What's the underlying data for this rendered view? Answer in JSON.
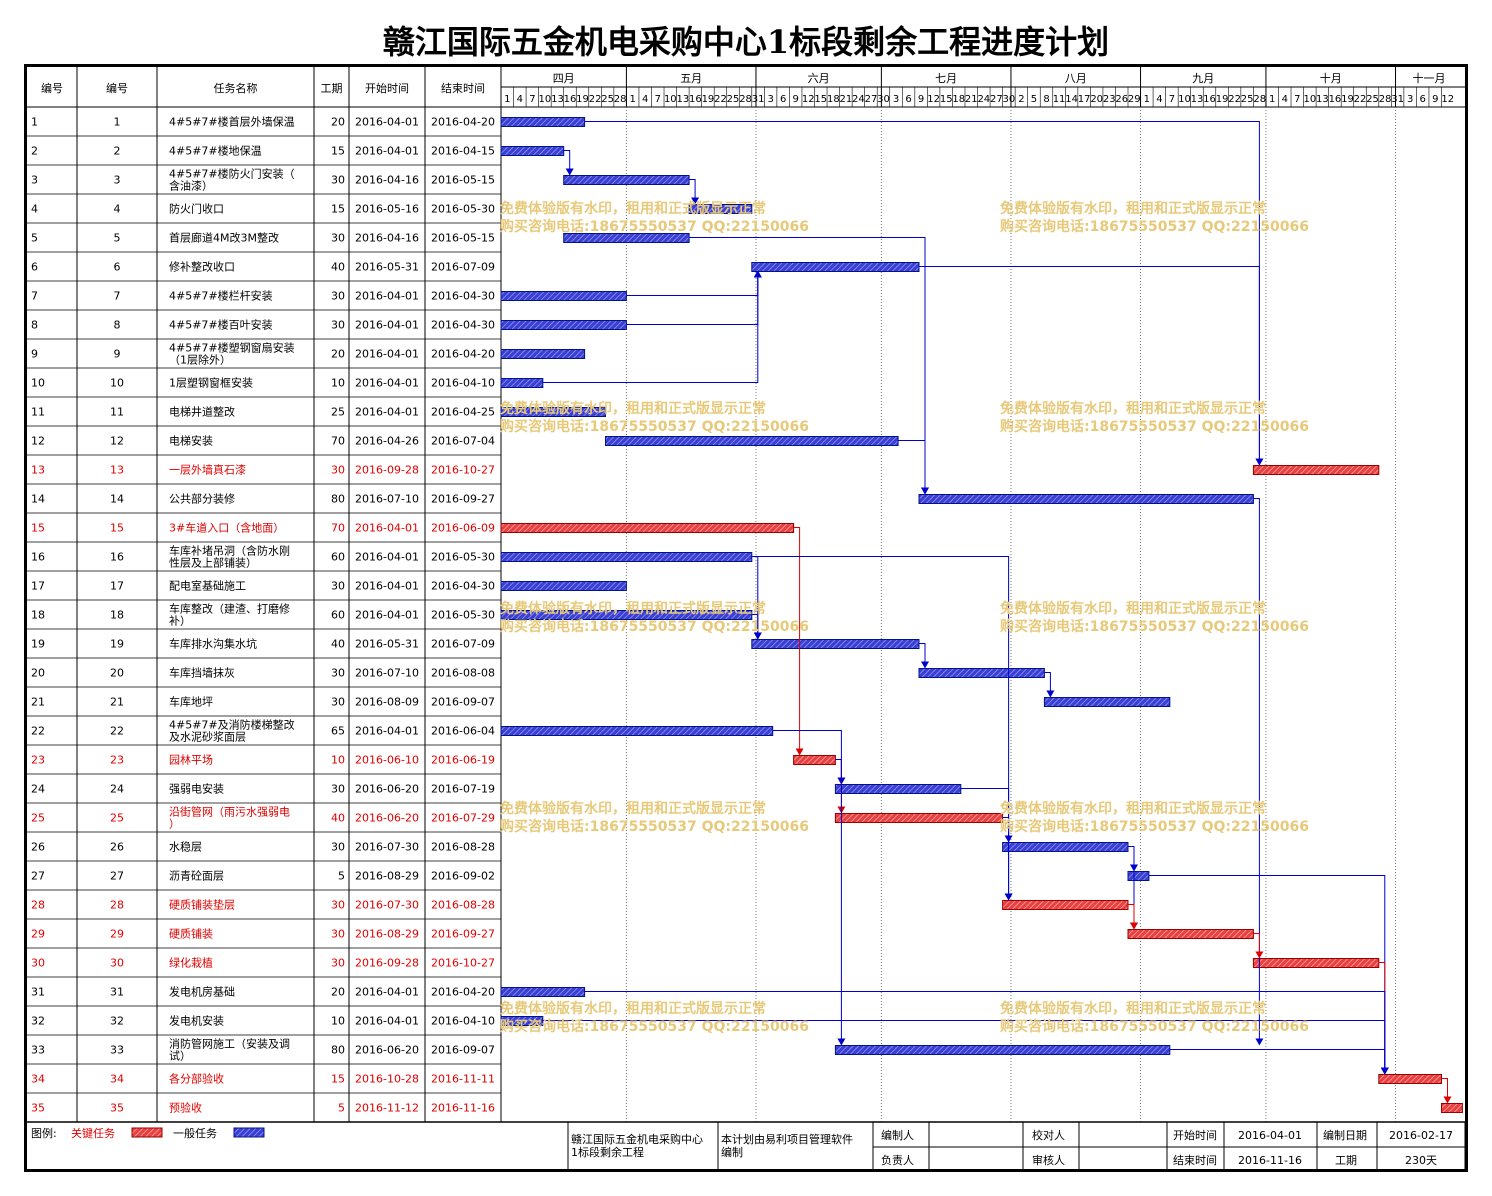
{
  "title": "赣江国际五金机电采购中心1标段剩余工程进度计划",
  "header": {
    "col_id": "编号",
    "col_no": "编号",
    "col_name": "任务名称",
    "col_dur": "工期",
    "col_start": "开始时间",
    "col_end": "结束时间"
  },
  "months": [
    "四月",
    "五月",
    "六月",
    "七月",
    "八月",
    "九月",
    "十月",
    "十一月"
  ],
  "day_ticks": [
    [
      "1",
      "4",
      "7",
      "10",
      "13",
      "16",
      "19",
      "22",
      "25",
      "28"
    ],
    [
      "1",
      "4",
      "7",
      "10",
      "13",
      "16",
      "19",
      "22",
      "25",
      "28",
      "31"
    ],
    [
      "3",
      "6",
      "9",
      "12",
      "15",
      "18",
      "21",
      "24",
      "27",
      "30"
    ],
    [
      "3",
      "6",
      "9",
      "12",
      "15",
      "18",
      "21",
      "24",
      "27",
      "30"
    ],
    [
      "2",
      "5",
      "8",
      "11",
      "14",
      "17",
      "20",
      "23",
      "26",
      "29"
    ],
    [
      "1",
      "4",
      "7",
      "10",
      "13",
      "16",
      "19",
      "22",
      "25",
      "28"
    ],
    [
      "1",
      "4",
      "7",
      "10",
      "13",
      "16",
      "19",
      "22",
      "25",
      "28",
      "31"
    ],
    [
      "3",
      "6",
      "9",
      "12"
    ]
  ],
  "tasks": [
    {
      "id": "1",
      "name": "4#5#7#楼首层外墙保温",
      "dur": "20",
      "start": "2016-04-01",
      "end": "2016-04-20",
      "critical": false
    },
    {
      "id": "2",
      "name": "4#5#7#楼地保温",
      "dur": "15",
      "start": "2016-04-01",
      "end": "2016-04-15",
      "critical": false
    },
    {
      "id": "3",
      "name": "4#5#7#楼防火门安装（含油漆）",
      "dur": "30",
      "start": "2016-04-16",
      "end": "2016-05-15",
      "critical": false
    },
    {
      "id": "4",
      "name": "防火门收口",
      "dur": "15",
      "start": "2016-05-16",
      "end": "2016-05-30",
      "critical": false
    },
    {
      "id": "5",
      "name": "首层廊道4M改3M整改",
      "dur": "30",
      "start": "2016-04-16",
      "end": "2016-05-15",
      "critical": false
    },
    {
      "id": "6",
      "name": "修补整改收口",
      "dur": "40",
      "start": "2016-05-31",
      "end": "2016-07-09",
      "critical": false
    },
    {
      "id": "7",
      "name": "4#5#7#楼栏杆安装",
      "dur": "30",
      "start": "2016-04-01",
      "end": "2016-04-30",
      "critical": false
    },
    {
      "id": "8",
      "name": "4#5#7#楼百叶安装",
      "dur": "30",
      "start": "2016-04-01",
      "end": "2016-04-30",
      "critical": false
    },
    {
      "id": "9",
      "name": "4#5#7#楼塑钢窗扇安装（1层除外）",
      "dur": "20",
      "start": "2016-04-01",
      "end": "2016-04-20",
      "critical": false
    },
    {
      "id": "10",
      "name": "1层塑钢窗框安装",
      "dur": "10",
      "start": "2016-04-01",
      "end": "2016-04-10",
      "critical": false
    },
    {
      "id": "11",
      "name": "电梯井道整改",
      "dur": "25",
      "start": "2016-04-01",
      "end": "2016-04-25",
      "critical": false
    },
    {
      "id": "12",
      "name": "电梯安装",
      "dur": "70",
      "start": "2016-04-26",
      "end": "2016-07-04",
      "critical": false
    },
    {
      "id": "13",
      "name": "一层外墙真石漆",
      "dur": "30",
      "start": "2016-09-28",
      "end": "2016-10-27",
      "critical": true
    },
    {
      "id": "14",
      "name": "公共部分装修",
      "dur": "80",
      "start": "2016-07-10",
      "end": "2016-09-27",
      "critical": false
    },
    {
      "id": "15",
      "name": "3#车道入口（含地面）",
      "dur": "70",
      "start": "2016-04-01",
      "end": "2016-06-09",
      "critical": true
    },
    {
      "id": "16",
      "name": "车库补堵吊洞（含防水刚性层及上部铺装）",
      "dur": "60",
      "start": "2016-04-01",
      "end": "2016-05-30",
      "critical": false
    },
    {
      "id": "17",
      "name": "配电室基础施工",
      "dur": "30",
      "start": "2016-04-01",
      "end": "2016-04-30",
      "critical": false
    },
    {
      "id": "18",
      "name": "车库整改（建渣、打磨修补）",
      "dur": "60",
      "start": "2016-04-01",
      "end": "2016-05-30",
      "critical": false
    },
    {
      "id": "19",
      "name": "车库排水沟集水坑",
      "dur": "40",
      "start": "2016-05-31",
      "end": "2016-07-09",
      "critical": false
    },
    {
      "id": "20",
      "name": "车库挡墙抹灰",
      "dur": "30",
      "start": "2016-07-10",
      "end": "2016-08-08",
      "critical": false
    },
    {
      "id": "21",
      "name": "车库地坪",
      "dur": "30",
      "start": "2016-08-09",
      "end": "2016-09-07",
      "critical": false
    },
    {
      "id": "22",
      "name": "4#5#7#及消防楼梯整改及水泥砂浆面层",
      "dur": "65",
      "start": "2016-04-01",
      "end": "2016-06-04",
      "critical": false
    },
    {
      "id": "23",
      "name": "园林平场",
      "dur": "10",
      "start": "2016-06-10",
      "end": "2016-06-19",
      "critical": true
    },
    {
      "id": "24",
      "name": "强弱电安装",
      "dur": "30",
      "start": "2016-06-20",
      "end": "2016-07-19",
      "critical": false
    },
    {
      "id": "25",
      "name": "沿街管网（雨污水强弱电）",
      "dur": "40",
      "start": "2016-06-20",
      "end": "2016-07-29",
      "critical": true
    },
    {
      "id": "26",
      "name": "水稳层",
      "dur": "30",
      "start": "2016-07-30",
      "end": "2016-08-28",
      "critical": false
    },
    {
      "id": "27",
      "name": "沥青砼面层",
      "dur": "5",
      "start": "2016-08-29",
      "end": "2016-09-02",
      "critical": false
    },
    {
      "id": "28",
      "name": "硬质铺装垫层",
      "dur": "30",
      "start": "2016-07-30",
      "end": "2016-08-28",
      "critical": true
    },
    {
      "id": "29",
      "name": "硬质铺装",
      "dur": "30",
      "start": "2016-08-29",
      "end": "2016-09-27",
      "critical": true
    },
    {
      "id": "30",
      "name": "绿化栽植",
      "dur": "30",
      "start": "2016-09-28",
      "end": "2016-10-27",
      "critical": true
    },
    {
      "id": "31",
      "name": "发电机房基础",
      "dur": "20",
      "start": "2016-04-01",
      "end": "2016-04-20",
      "critical": false
    },
    {
      "id": "32",
      "name": "发电机安装",
      "dur": "10",
      "start": "2016-04-01",
      "end": "2016-04-10",
      "critical": false
    },
    {
      "id": "33",
      "name": "消防管网施工（安装及调试）",
      "dur": "80",
      "start": "2016-06-20",
      "end": "2016-09-07",
      "critical": false
    },
    {
      "id": "34",
      "name": "各分部验收",
      "dur": "15",
      "start": "2016-10-28",
      "end": "2016-11-11",
      "critical": true
    },
    {
      "id": "35",
      "name": "预验收",
      "dur": "5",
      "start": "2016-11-12",
      "end": "2016-11-16",
      "critical": true
    }
  ],
  "links": [
    [
      1,
      13
    ],
    [
      2,
      3
    ],
    [
      3,
      4
    ],
    [
      5,
      14
    ],
    [
      6,
      13
    ],
    [
      7,
      6
    ],
    [
      8,
      6
    ],
    [
      10,
      6
    ],
    [
      12,
      14
    ],
    [
      14,
      33
    ],
    [
      15,
      23
    ],
    [
      16,
      19
    ],
    [
      16,
      28
    ],
    [
      18,
      19
    ],
    [
      19,
      20
    ],
    [
      20,
      21
    ],
    [
      22,
      24
    ],
    [
      23,
      24
    ],
    [
      23,
      25
    ],
    [
      23,
      33
    ],
    [
      24,
      28
    ],
    [
      25,
      26
    ],
    [
      26,
      27
    ],
    [
      26,
      29
    ],
    [
      27,
      34
    ],
    [
      28,
      29
    ],
    [
      29,
      30
    ],
    [
      30,
      34
    ],
    [
      31,
      34
    ],
    [
      32,
      34
    ],
    [
      33,
      34
    ],
    [
      34,
      35
    ]
  ],
  "watermark": {
    "line1": "免费体验版有水印，租用和正式版显示正常",
    "line2": "购买咨询电话:18675550537 QQ:22150066"
  },
  "legend": {
    "label": "图例:",
    "critical": "关键任务",
    "normal": "一般任务"
  },
  "footer": {
    "project_name": "赣江国际五金机电采购中心1标段剩余工程",
    "software": "本计划由易利项目管理软件编制",
    "compiler_label": "编制人",
    "compiler_value": "",
    "checker_label": "校对人",
    "checker_value": "",
    "owner_label": "负责人",
    "owner_value": "",
    "reviewer_label": "审核人",
    "reviewer_value": "",
    "start_label": "开始时间",
    "start_value": "2016-04-01",
    "end_label": "结束时间",
    "end_value": "2016-11-16",
    "made_label": "编制日期",
    "made_value": "2016-02-17",
    "period_label": "工期",
    "period_value": "230天"
  },
  "colors": {
    "normal_fill": "#3b3fd1",
    "normal_line": "#0000cc",
    "critical_fill": "#e84040",
    "critical_line": "#e00000",
    "critical_text": "#e00000"
  }
}
